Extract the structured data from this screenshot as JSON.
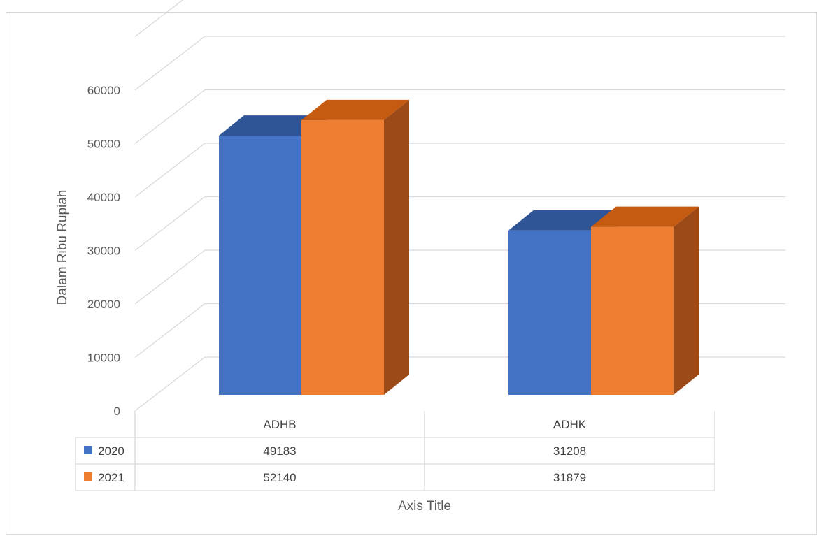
{
  "chart_data": {
    "type": "bar",
    "style": "3d-clustered-column-with-data-table",
    "categories": [
      "ADHB",
      "ADHK"
    ],
    "series": [
      {
        "name": "2020",
        "values": [
          49183,
          31208
        ],
        "color": "#4472c4",
        "top_color": "#2f5597",
        "side_color": "#2f5597"
      },
      {
        "name": "2021",
        "values": [
          52140,
          31879
        ],
        "color": "#ed7d31",
        "top_color": "#c55a11",
        "side_color": "#9c4a17"
      }
    ],
    "ylabel": "Dalam Ribu Rupiah",
    "xlabel": "Axis Title",
    "ylim": [
      0,
      60000
    ],
    "yticks": [
      "0",
      "10000",
      "20000",
      "30000",
      "40000",
      "50000",
      "60000"
    ],
    "grid": true,
    "legend": "data-table-keys"
  }
}
